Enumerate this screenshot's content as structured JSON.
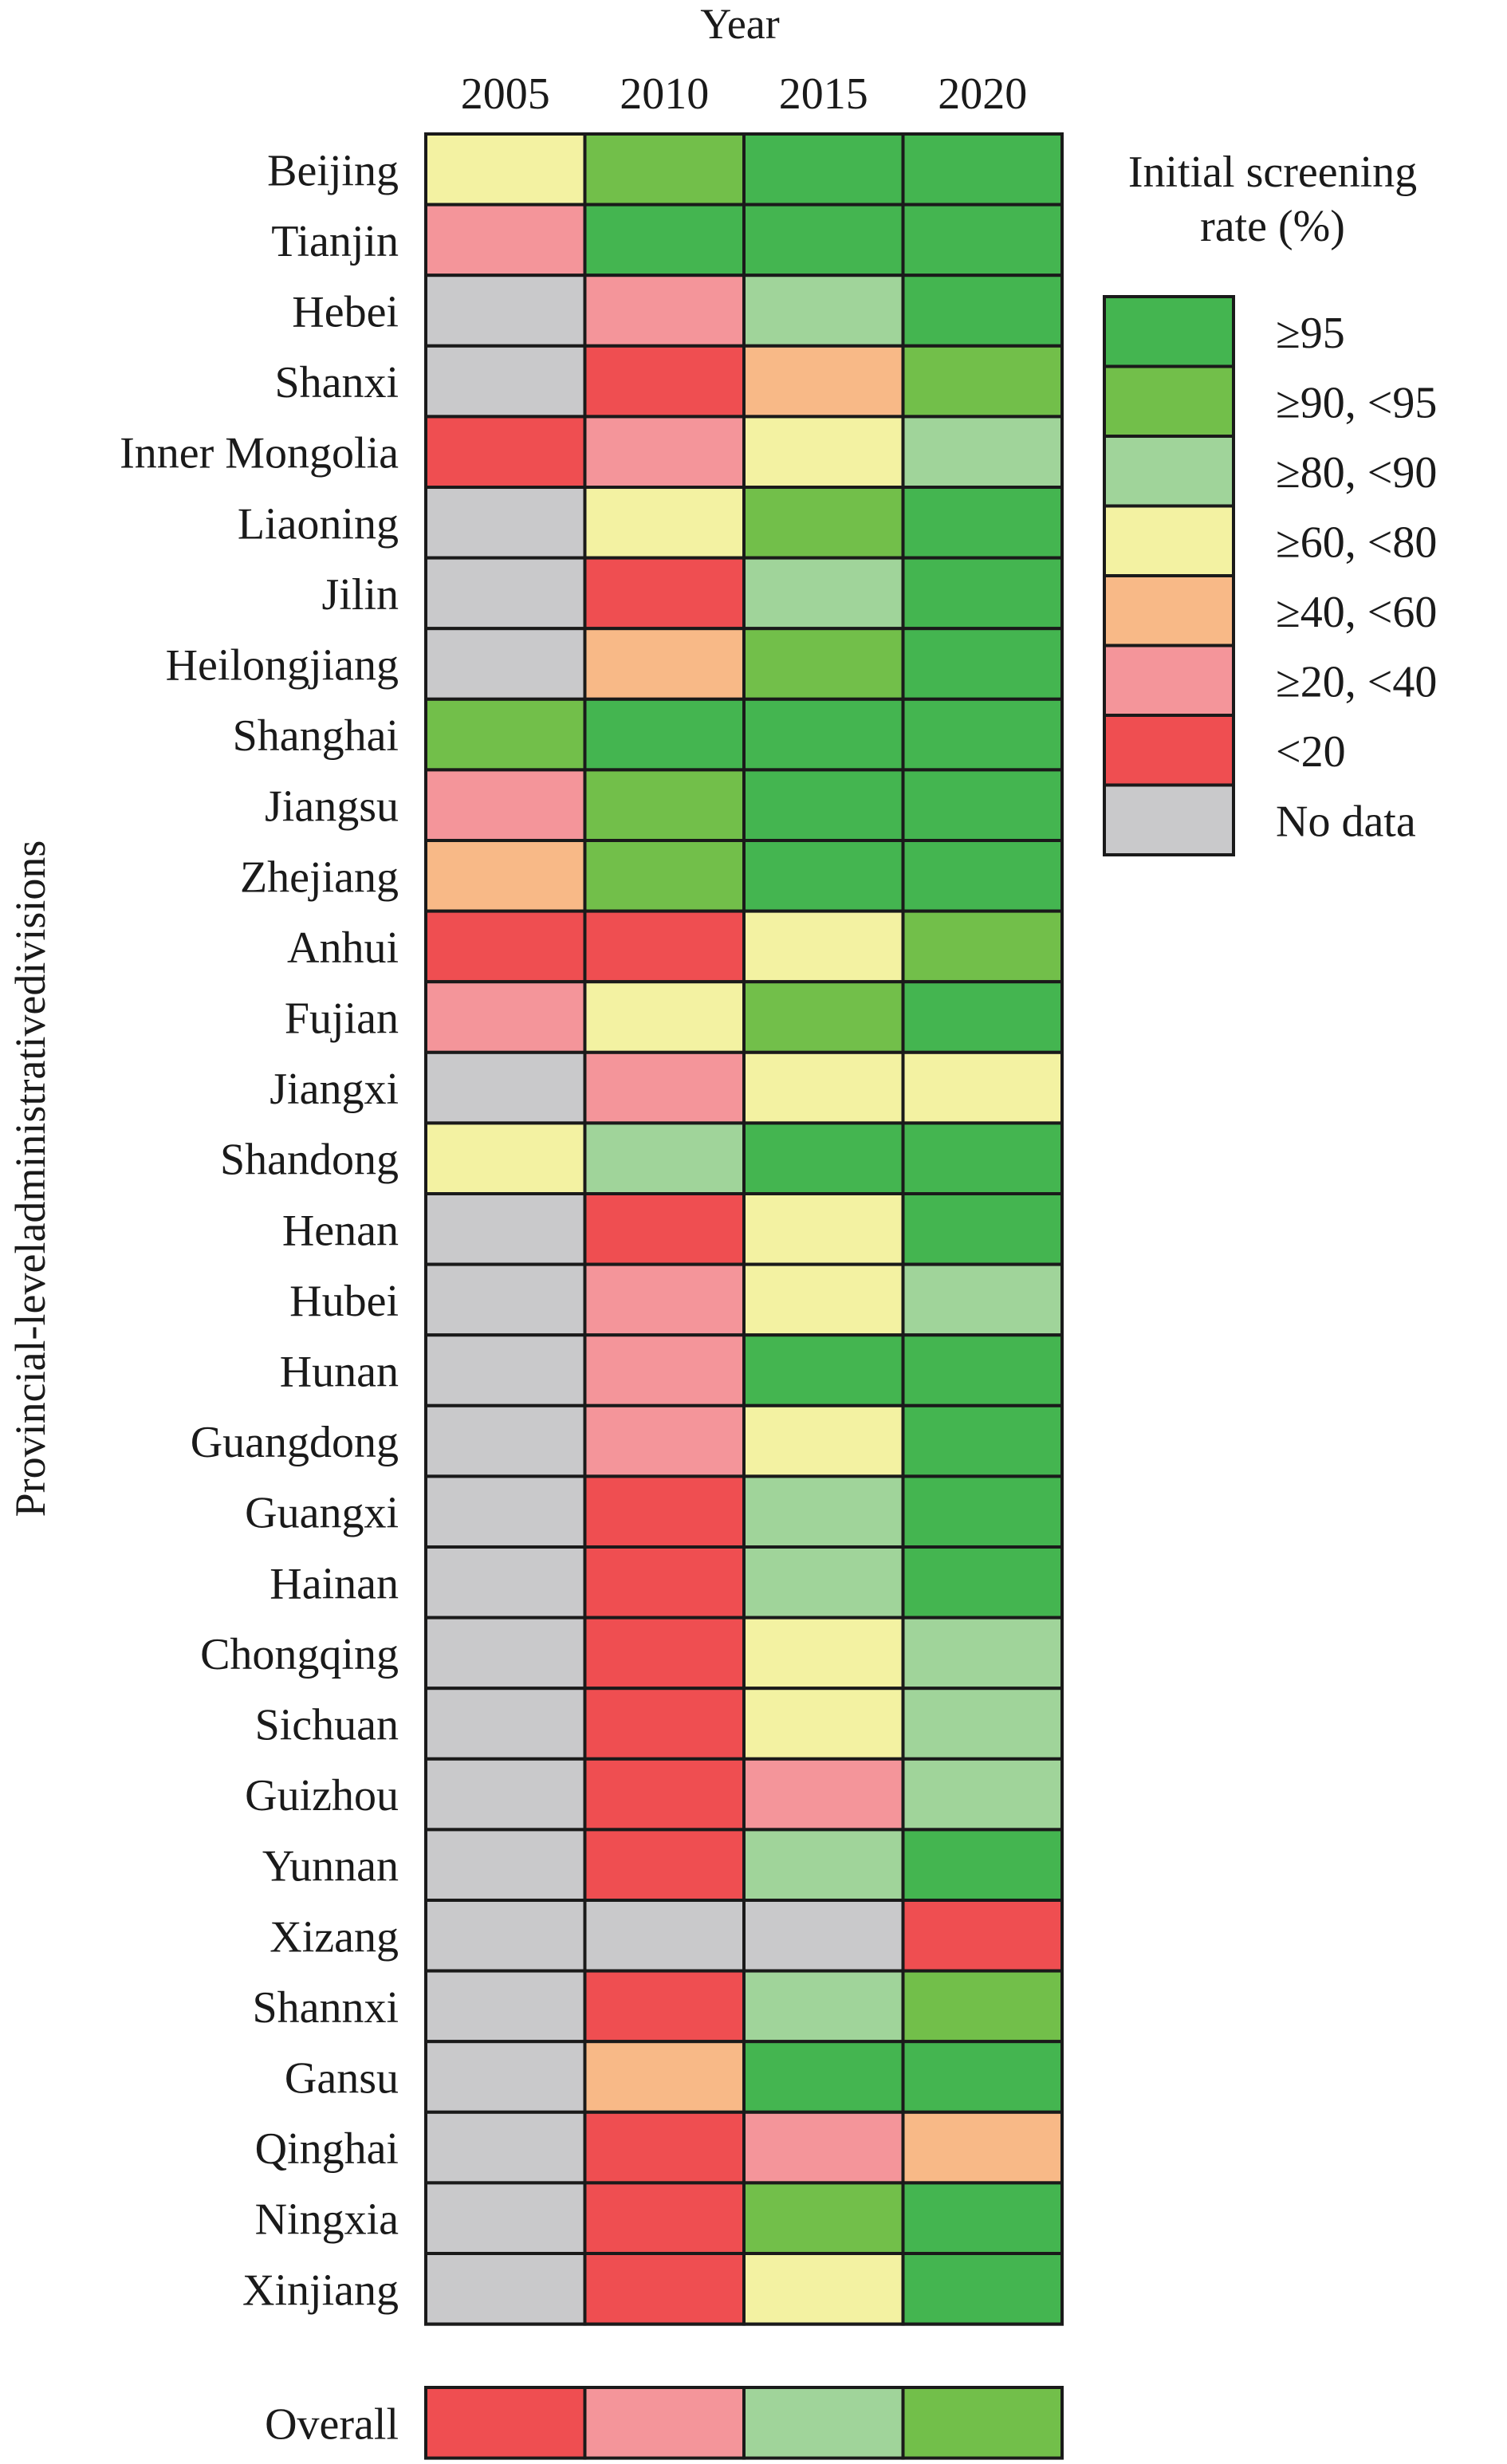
{
  "chart_data": {
    "type": "heatmap",
    "x_axis_title": "Year",
    "y_axis_title": "Provincial-leveladministrativedivisions",
    "columns": [
      "2005",
      "2010",
      "2015",
      "2020"
    ],
    "rows": [
      "Beijing",
      "Tianjin",
      "Hebei",
      "Shanxi",
      "Inner Mongolia",
      "Liaoning",
      "Jilin",
      "Heilongjiang",
      "Shanghai",
      "Jiangsu",
      "Zhejiang",
      "Anhui",
      "Fujian",
      "Jiangxi",
      "Shandong",
      "Henan",
      "Hubei",
      "Hunan",
      "Guangdong",
      "Guangxi",
      "Hainan",
      "Chongqing",
      "Sichuan",
      "Guizhou",
      "Yunnan",
      "Xizang",
      "Shannxi",
      "Gansu",
      "Qinghai",
      "Ningxia",
      "Xinjiang"
    ],
    "values": [
      [
        "≥60, <80",
        "≥90, <95",
        "≥95",
        "≥95"
      ],
      [
        "≥20, <40",
        "≥95",
        "≥95",
        "≥95"
      ],
      [
        "No data",
        "≥20, <40",
        "≥80, <90",
        "≥95"
      ],
      [
        "No data",
        "<20",
        "≥40, <60",
        "≥90, <95"
      ],
      [
        "<20",
        "≥20, <40",
        "≥60, <80",
        "≥80, <90"
      ],
      [
        "No data",
        "≥60, <80",
        "≥90, <95",
        "≥95"
      ],
      [
        "No data",
        "<20",
        "≥80, <90",
        "≥95"
      ],
      [
        "No data",
        "≥40, <60",
        "≥90, <95",
        "≥95"
      ],
      [
        "≥90, <95",
        "≥95",
        "≥95",
        "≥95"
      ],
      [
        "≥20, <40",
        "≥90, <95",
        "≥95",
        "≥95"
      ],
      [
        "≥40, <60",
        "≥90, <95",
        "≥95",
        "≥95"
      ],
      [
        "<20",
        "<20",
        "≥60, <80",
        "≥90, <95"
      ],
      [
        "≥20, <40",
        "≥60, <80",
        "≥90, <95",
        "≥95"
      ],
      [
        "No data",
        "≥20, <40",
        "≥60, <80",
        "≥60, <80"
      ],
      [
        "≥60, <80",
        "≥80, <90",
        "≥95",
        "≥95"
      ],
      [
        "No data",
        "<20",
        "≥60, <80",
        "≥95"
      ],
      [
        "No data",
        "≥20, <40",
        "≥60, <80",
        "≥80, <90"
      ],
      [
        "No data",
        "≥20, <40",
        "≥95",
        "≥95"
      ],
      [
        "No data",
        "≥20, <40",
        "≥60, <80",
        "≥95"
      ],
      [
        "No data",
        "<20",
        "≥80, <90",
        "≥95"
      ],
      [
        "No data",
        "<20",
        "≥80, <90",
        "≥95"
      ],
      [
        "No data",
        "<20",
        "≥60, <80",
        "≥80, <90"
      ],
      [
        "No data",
        "<20",
        "≥60, <80",
        "≥80, <90"
      ],
      [
        "No data",
        "<20",
        "≥20, <40",
        "≥80, <90"
      ],
      [
        "No data",
        "<20",
        "≥80, <90",
        "≥95"
      ],
      [
        "No data",
        "No data",
        "No data",
        "<20"
      ],
      [
        "No data",
        "<20",
        "≥80, <90",
        "≥90, <95"
      ],
      [
        "No data",
        "≥40, <60",
        "≥95",
        "≥95"
      ],
      [
        "No data",
        "<20",
        "≥20, <40",
        "≥40, <60"
      ],
      [
        "No data",
        "<20",
        "≥90, <95",
        "≥95"
      ],
      [
        "No data",
        "<20",
        "≥60, <80",
        "≥95"
      ]
    ],
    "overall": {
      "label": "Overall",
      "values": [
        "<20",
        "≥20, <40",
        "≥80, <90",
        "≥90, <95"
      ]
    },
    "legend": {
      "title_lines": [
        "Initial screening",
        "rate (%)"
      ],
      "position": "right",
      "categories": [
        "≥95",
        "≥90, <95",
        "≥80, <90",
        "≥60, <80",
        "≥40, <60",
        "≥20, <40",
        "<20",
        "No data"
      ],
      "colors": {
        "≥95": "#44b550",
        "≥90, <95": "#72bf4a",
        "≥80, <90": "#a0d49a",
        "≥60, <80": "#f3f2a2",
        "≥40, <60": "#f8b987",
        "≥20, <40": "#f4959a",
        "<20": "#ef4e51",
        "No data": "#c9c9cb"
      }
    }
  }
}
